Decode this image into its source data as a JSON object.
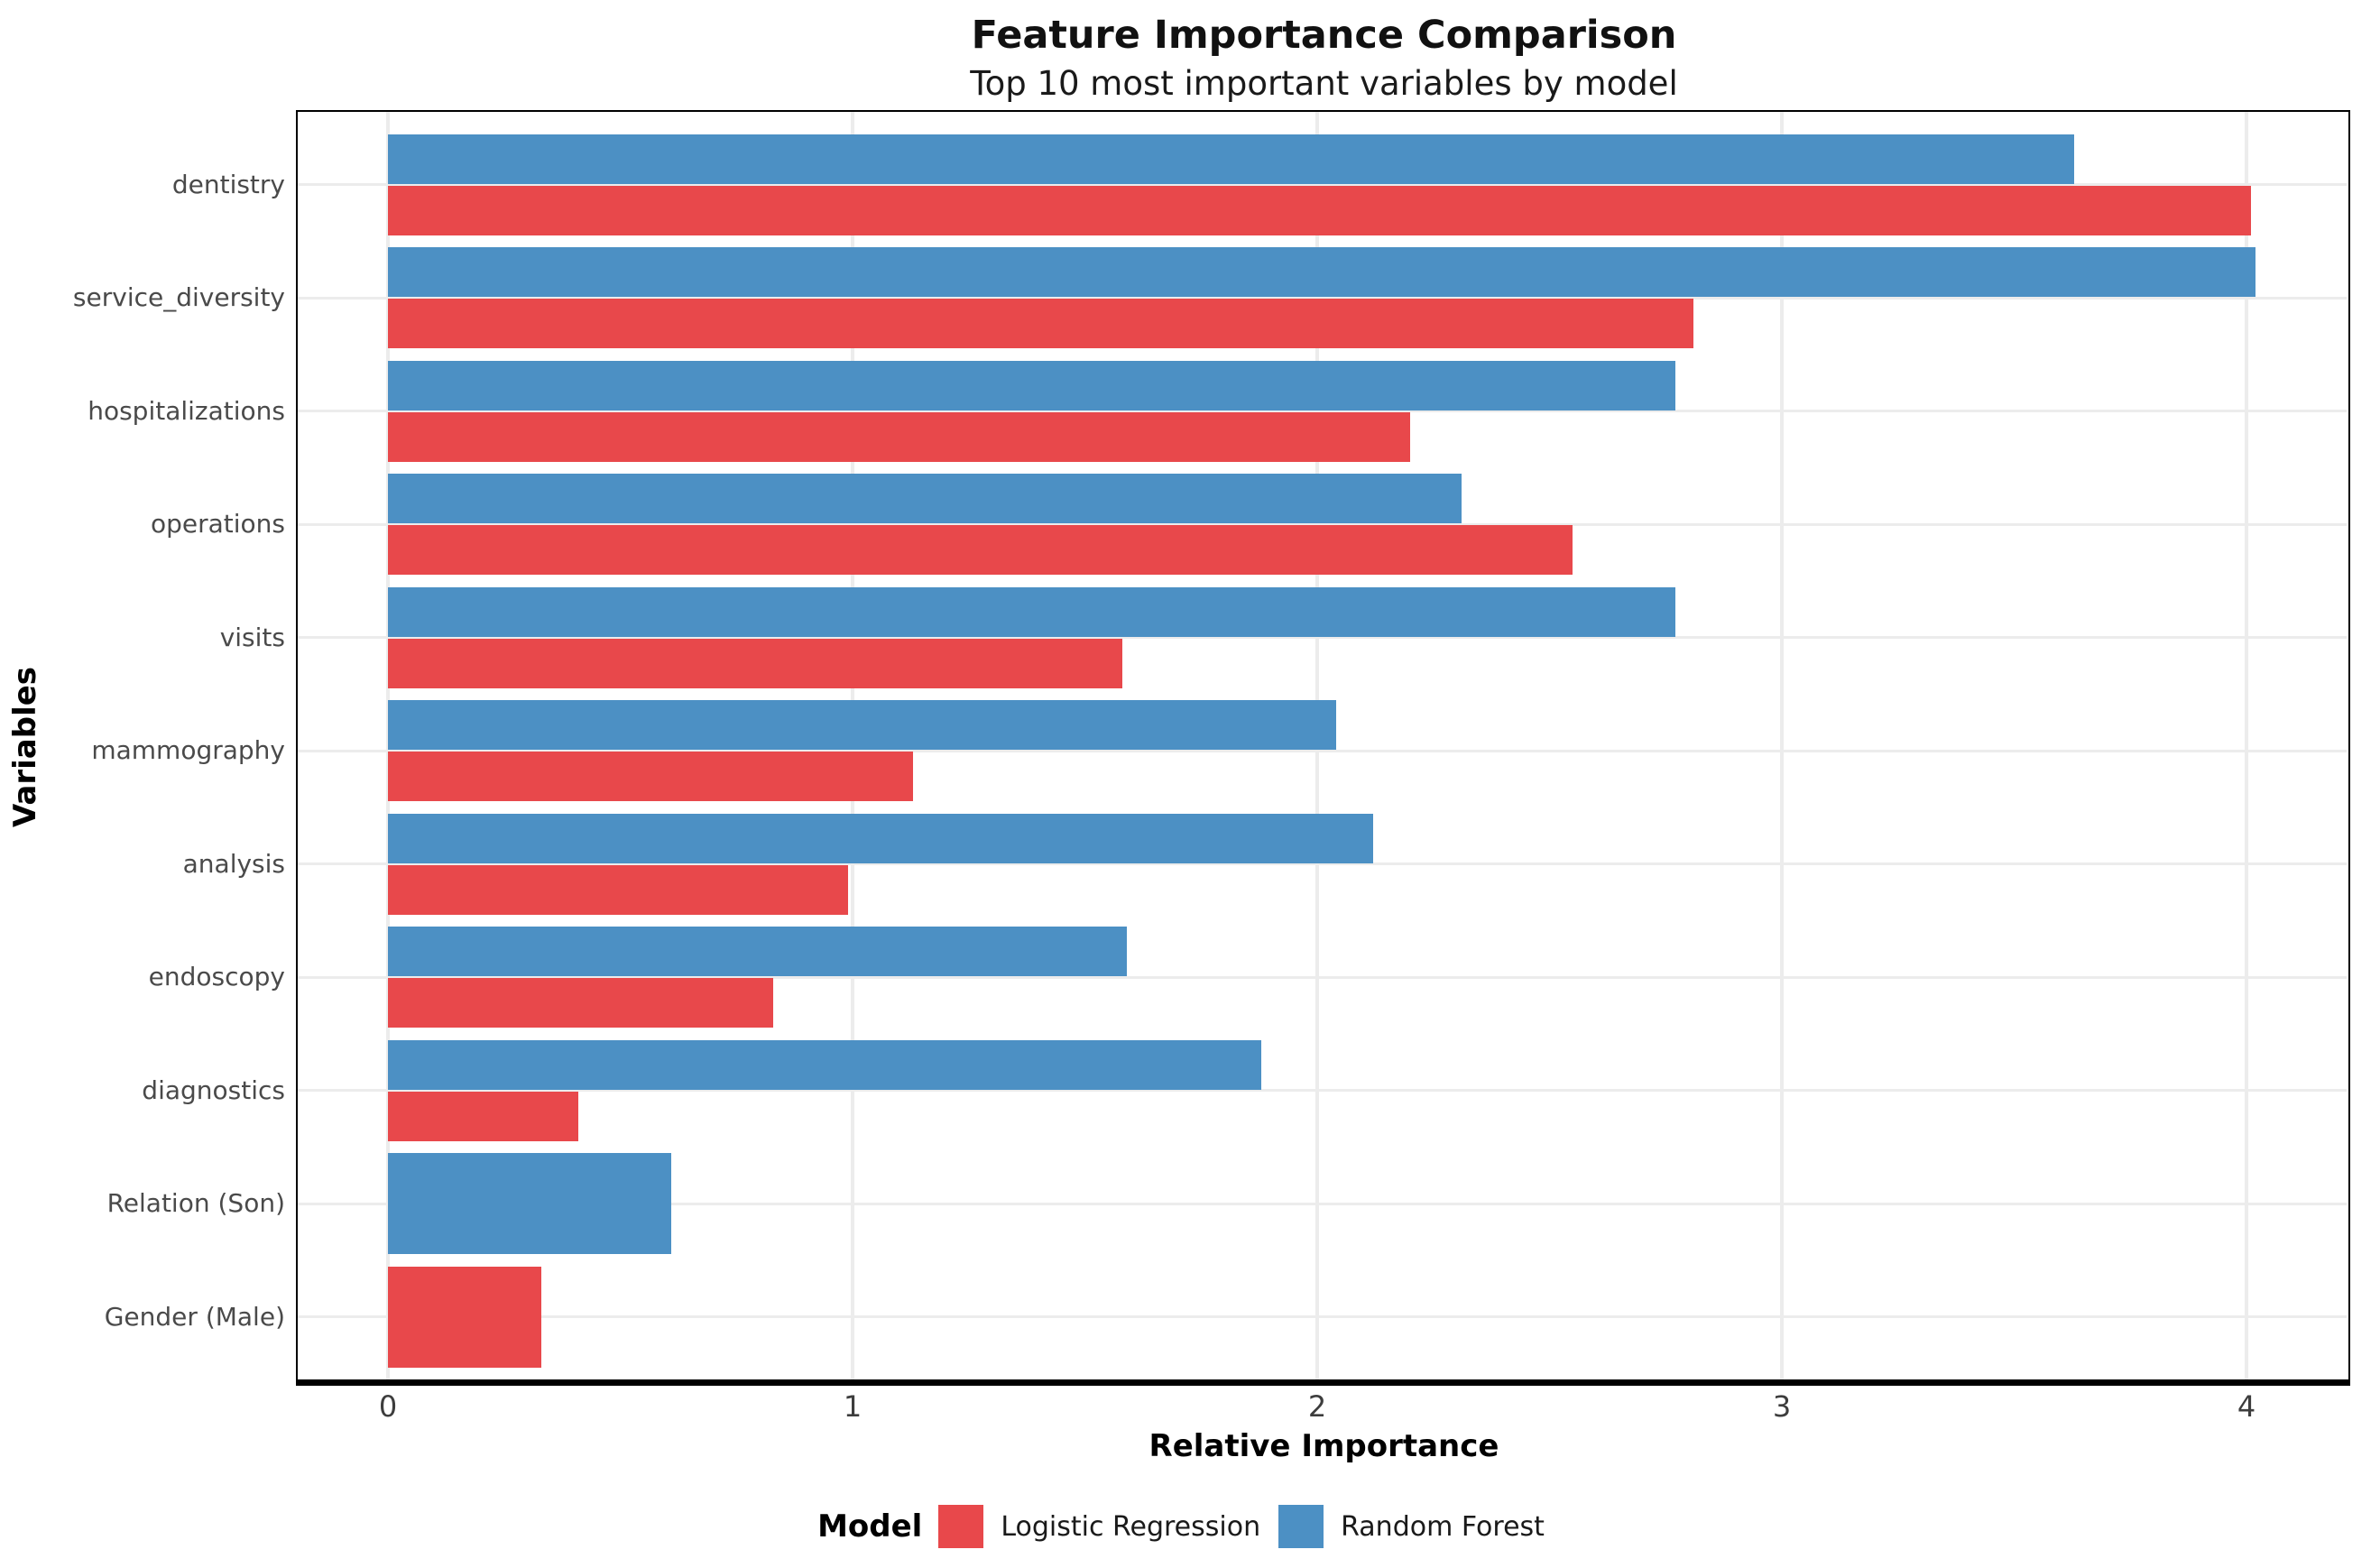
{
  "title": "Feature Importance Comparison",
  "subtitle": "Top 10 most important variables by model",
  "axes": {
    "x_label": "Relative Importance",
    "y_label": "Variables",
    "x_ticks": [
      "0",
      "1",
      "2",
      "3",
      "4"
    ]
  },
  "legend": {
    "title": "Model",
    "items": [
      {
        "label": "Logistic Regression",
        "color": "#E8484B"
      },
      {
        "label": "Random Forest",
        "color": "#4C90C4"
      }
    ]
  },
  "chart_data": {
    "type": "bar",
    "orientation": "horizontal",
    "title": "Feature Importance Comparison",
    "subtitle": "Top 10 most important variables by model",
    "xlabel": "Relative Importance",
    "ylabel": "Variables",
    "xlim": [
      0,
      4.22
    ],
    "x_ticks": [
      0,
      1,
      2,
      3,
      4
    ],
    "grid": true,
    "legend_position": "bottom",
    "categories": [
      "dentistry",
      "service_diversity",
      "hospitalizations",
      "operations",
      "visits",
      "mammography",
      "analysis",
      "endoscopy",
      "diagnostics",
      "Relation (Son)",
      "Gender (Male)"
    ],
    "series": [
      {
        "name": "Logistic Regression",
        "color": "#E8484B",
        "values": [
          4.01,
          2.81,
          2.2,
          2.55,
          1.58,
          1.13,
          0.99,
          0.83,
          0.41,
          null,
          0.33
        ]
      },
      {
        "name": "Random Forest",
        "color": "#4C90C4",
        "values": [
          3.63,
          4.02,
          2.77,
          2.31,
          2.77,
          2.04,
          2.12,
          1.59,
          1.88,
          0.61,
          null
        ]
      }
    ]
  },
  "style": {
    "grid_color": "#ececec",
    "axis_color": "#000000",
    "tick_label_color": "#3d3d3d",
    "category_label_color": "#4a4a4a"
  }
}
